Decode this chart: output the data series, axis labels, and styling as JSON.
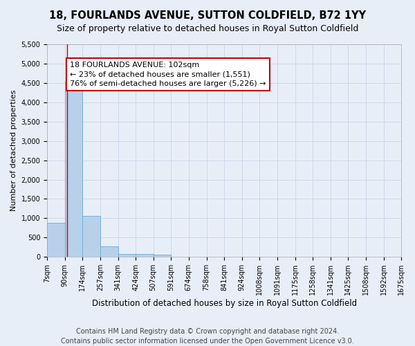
{
  "title": "18, FOURLANDS AVENUE, SUTTON COLDFIELD, B72 1YY",
  "subtitle": "Size of property relative to detached houses in Royal Sutton Coldfield",
  "xlabel": "Distribution of detached houses by size in Royal Sutton Coldfield",
  "ylabel": "Number of detached properties",
  "footer_line1": "Contains HM Land Registry data © Crown copyright and database right 2024.",
  "footer_line2": "Contains public sector information licensed under the Open Government Licence v3.0.",
  "bin_edges": [
    7,
    90,
    174,
    257,
    341,
    424,
    507,
    591,
    674,
    758,
    841,
    924,
    1008,
    1091,
    1175,
    1258,
    1341,
    1425,
    1508,
    1592,
    1675
  ],
  "bar_heights": [
    880,
    4560,
    1060,
    280,
    80,
    80,
    50,
    0,
    0,
    0,
    0,
    0,
    0,
    0,
    0,
    0,
    0,
    0,
    0,
    0
  ],
  "bar_color": "#b8d0ea",
  "bar_edge_color": "#6aaad4",
  "property_sqm": 102,
  "red_line_color": "#cc0000",
  "annotation_line1": "18 FOURLANDS AVENUE: 102sqm",
  "annotation_line2": "← 23% of detached houses are smaller (1,551)",
  "annotation_line3": "76% of semi-detached houses are larger (5,226) →",
  "annotation_box_color": "#cc0000",
  "annotation_bg_color": "#ffffff",
  "ylim": [
    0,
    5500
  ],
  "yticks": [
    0,
    500,
    1000,
    1500,
    2000,
    2500,
    3000,
    3500,
    4000,
    4500,
    5000,
    5500
  ],
  "grid_color": "#c8d4e8",
  "bg_color": "#e8eef8",
  "title_fontsize": 10.5,
  "subtitle_fontsize": 9,
  "xlabel_fontsize": 8.5,
  "ylabel_fontsize": 8,
  "tick_fontsize": 7,
  "footer_fontsize": 7,
  "annotation_fontsize": 8
}
